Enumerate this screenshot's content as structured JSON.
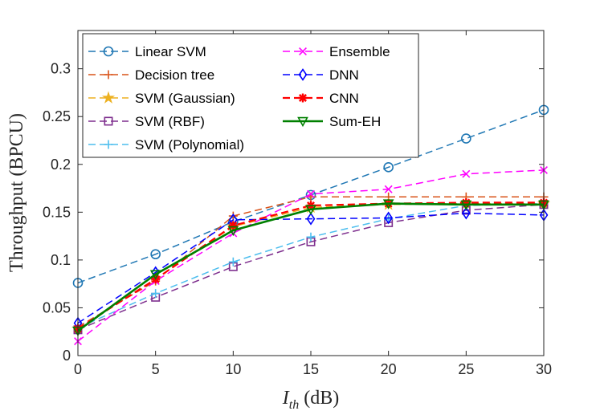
{
  "chart_data": {
    "type": "line",
    "title": "",
    "xlabel": "I_th (dB)",
    "xlabel_main": "I",
    "xlabel_sub": "th",
    "xlabel_unit": " (dB)",
    "ylabel": "Throughput (BPCU)",
    "xlim": [
      0,
      30
    ],
    "ylim": [
      0,
      0.34
    ],
    "x_ticks": [
      0,
      5,
      10,
      15,
      20,
      25,
      30
    ],
    "x_tick_labels": [
      "0",
      "5",
      "10",
      "15",
      "20",
      "25",
      "30"
    ],
    "y_ticks": [
      0,
      0.05,
      0.1,
      0.15,
      0.2,
      0.25,
      0.3
    ],
    "y_tick_labels": [
      "0",
      "0.05",
      "0.1",
      "0.15",
      "0.2",
      "0.25",
      "0.3"
    ],
    "grid": false,
    "legend_position": "top-left",
    "x": [
      0,
      5,
      10,
      15,
      20,
      25,
      30
    ],
    "series": [
      {
        "name": "Linear SVM",
        "values": [
          0.076,
          0.106,
          0.14,
          0.168,
          0.197,
          0.227,
          0.257
        ],
        "color": "#1f77b4",
        "marker": "circle",
        "dash": "dash"
      },
      {
        "name": "Decision tree",
        "values": [
          0.03,
          0.078,
          0.146,
          0.166,
          0.166,
          0.166,
          0.166
        ],
        "color": "#d95319",
        "marker": "plus",
        "dash": "dash"
      },
      {
        "name": "SVM (Gaussian)",
        "values": [
          0.028,
          0.08,
          0.135,
          0.155,
          0.158,
          0.159,
          0.159
        ],
        "color": "#edb120",
        "marker": "star",
        "dash": "dash"
      },
      {
        "name": "SVM (RBF)",
        "values": [
          0.027,
          0.061,
          0.093,
          0.119,
          0.139,
          0.152,
          0.158
        ],
        "color": "#7e2f8e",
        "marker": "square",
        "dash": "dash"
      },
      {
        "name": "SVM (Polynomial)",
        "values": [
          0.029,
          0.065,
          0.098,
          0.124,
          0.143,
          0.157,
          0.159
        ],
        "color": "#4dbeee",
        "marker": "plus",
        "dash": "dash"
      },
      {
        "name": "Ensemble",
        "values": [
          0.015,
          0.078,
          0.128,
          0.169,
          0.174,
          0.19,
          0.194
        ],
        "color": "#ff00ff",
        "marker": "x",
        "dash": "dash"
      },
      {
        "name": "DNN",
        "values": [
          0.034,
          0.087,
          0.142,
          0.143,
          0.144,
          0.149,
          0.147
        ],
        "color": "#0000ff",
        "marker": "diamond",
        "dash": "dash"
      },
      {
        "name": "CNN",
        "values": [
          0.028,
          0.08,
          0.136,
          0.157,
          0.159,
          0.16,
          0.16
        ],
        "color": "#ff0000",
        "marker": "asterisk",
        "dash": "dash"
      },
      {
        "name": "Sum-EH",
        "values": [
          0.026,
          0.085,
          0.131,
          0.153,
          0.159,
          0.158,
          0.158
        ],
        "color": "#008000",
        "marker": "triangle-down",
        "dash": "solid"
      }
    ]
  }
}
